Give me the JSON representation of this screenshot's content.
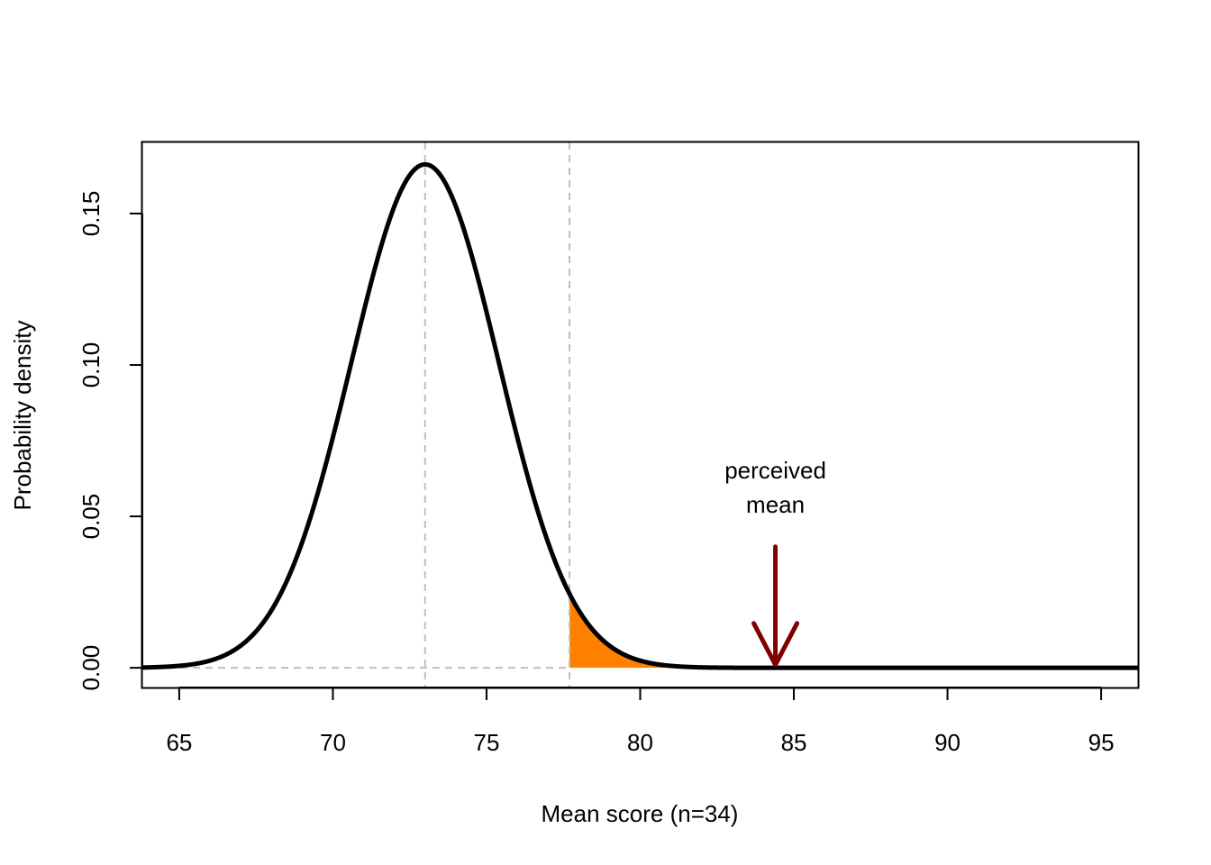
{
  "chart_data": {
    "type": "area",
    "xlabel": "Mean score (n=34)",
    "ylabel": "Probability density",
    "xlim": [
      63.8,
      96.2
    ],
    "ylim": [
      -0.0065,
      0.1735
    ],
    "x_ticks": [
      65,
      70,
      75,
      80,
      85,
      90,
      95
    ],
    "x_tick_labels": [
      "65",
      "70",
      "75",
      "80",
      "85",
      "90",
      "95"
    ],
    "y_ticks": [
      0.0,
      0.05,
      0.1,
      0.15
    ],
    "y_tick_labels": [
      "0.00",
      "0.05",
      "0.10",
      "0.15"
    ],
    "grid": false,
    "series": [
      {
        "distribution": "normal",
        "mean": 73.0,
        "sd": 2.4,
        "x_range": [
          63.8,
          96.2
        ],
        "peak_density": 0.166,
        "color": "#000000"
      }
    ],
    "shaded_region": {
      "x_from": 77.7,
      "x_to": 96.2,
      "color": "#ff7f00"
    },
    "reference_lines": [
      {
        "orientation": "vertical",
        "x": 73.0,
        "style": "dashed",
        "color": "#bebebe"
      },
      {
        "orientation": "vertical",
        "x": 77.7,
        "style": "dashed",
        "color": "#bebebe"
      },
      {
        "orientation": "horizontal",
        "y": 0.0,
        "x_to": 77.7,
        "style": "dashed",
        "color": "#bebebe"
      }
    ],
    "annotations": [
      {
        "text_lines": [
          "perceived",
          "mean"
        ],
        "x": 84.4,
        "arrow": {
          "x": 84.4,
          "y_from": 0.04,
          "y_to": 0.001,
          "color": "#800000"
        }
      }
    ]
  }
}
